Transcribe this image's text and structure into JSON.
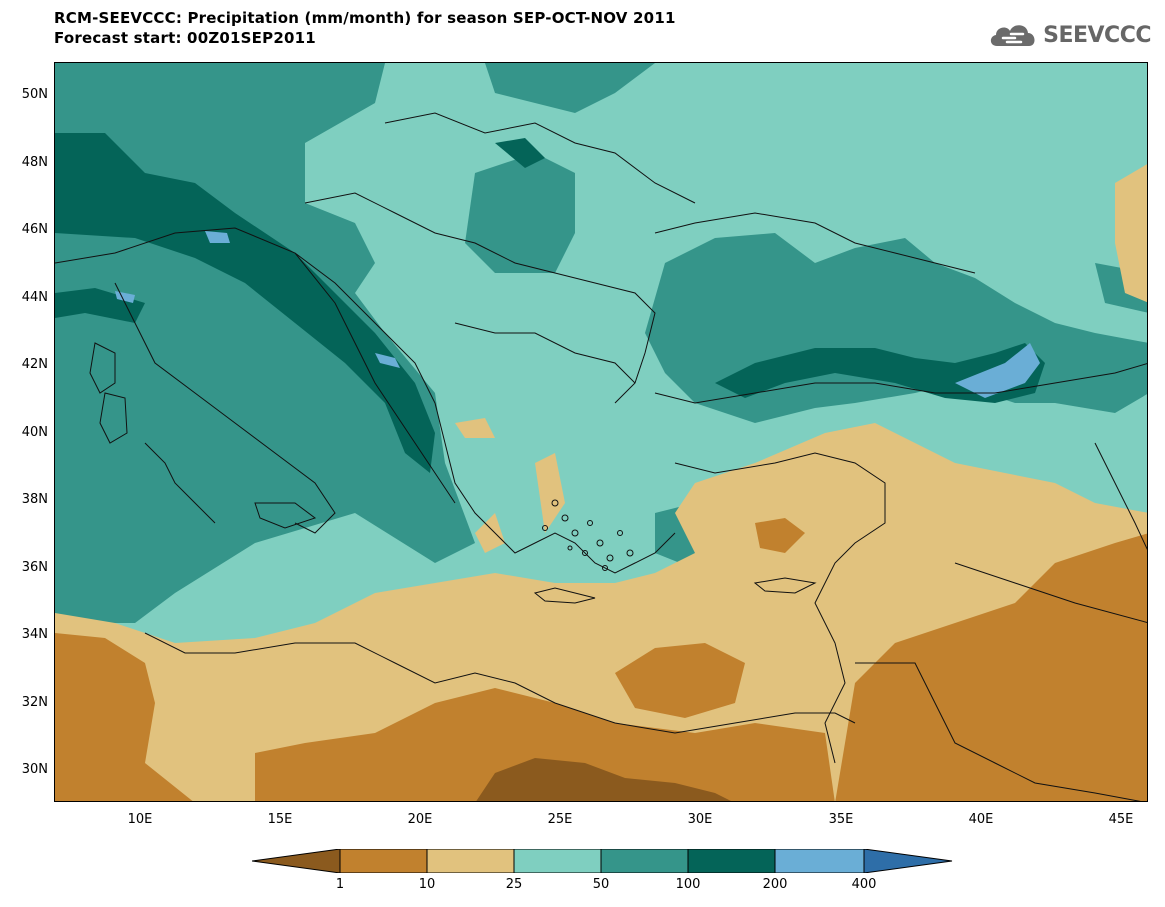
{
  "title": {
    "line1": "RCM-SEEVCCC: Precipitation (mm/month) for season SEP-OCT-NOV 2011",
    "line2": "Forecast start: 00Z01SEP2011"
  },
  "logo": {
    "text": "SEEVCCC",
    "icon": "cloud-icon"
  },
  "axes": {
    "lat_labels": [
      "50N",
      "48N",
      "46N",
      "44N",
      "42N",
      "40N",
      "38N",
      "36N",
      "34N",
      "32N",
      "30N"
    ],
    "lon_labels": [
      "10E",
      "15E",
      "20E",
      "25E",
      "30E",
      "35E",
      "40E",
      "45E"
    ]
  },
  "colorbar": {
    "labels": [
      "1",
      "10",
      "25",
      "50",
      "100",
      "200",
      "400"
    ],
    "colors": [
      "#8b5a1e",
      "#c1812e",
      "#e1c27e",
      "#7fcfc0",
      "#35958a",
      "#046458",
      "#6aaed6",
      "#2e6ea8"
    ]
  }
}
